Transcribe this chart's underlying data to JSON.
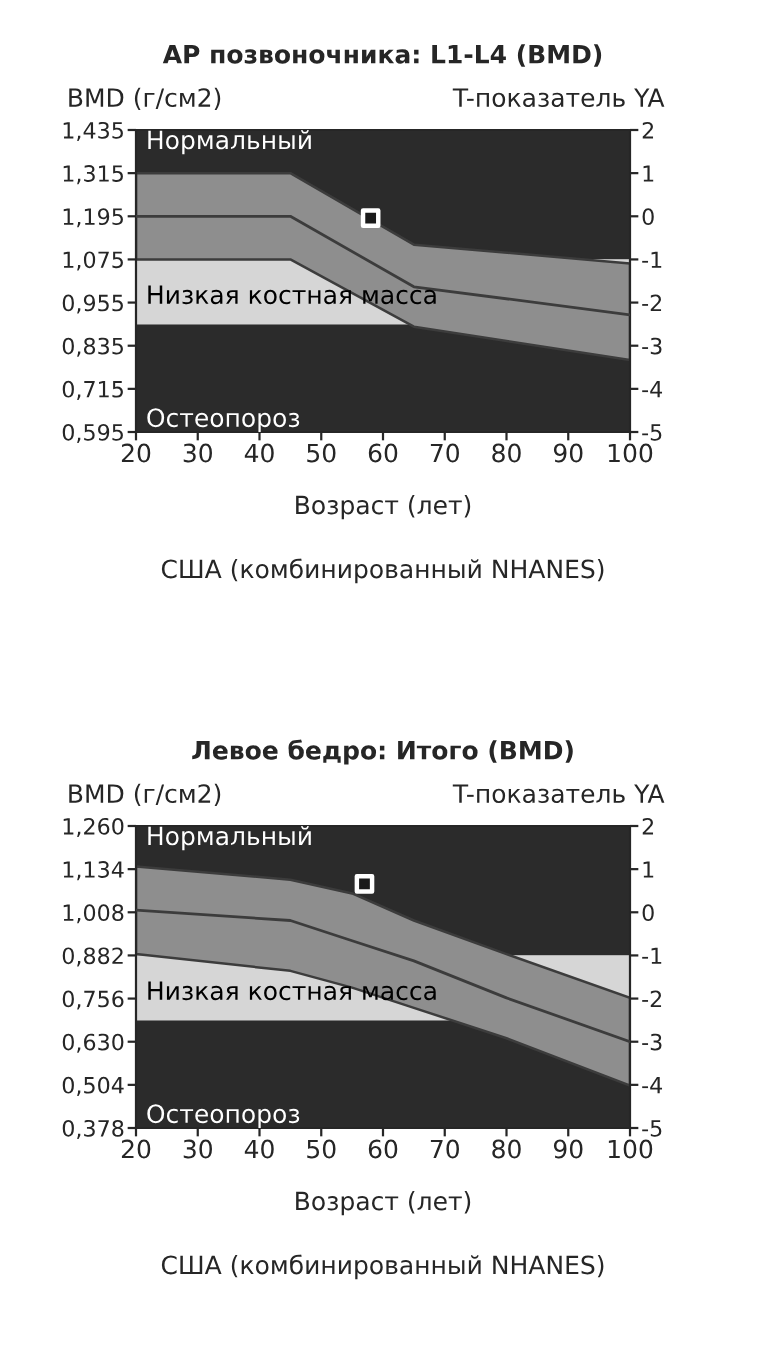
{
  "chart_data": [
    {
      "type": "line",
      "title": "AP позвоночника: L1-L4 (BMD)",
      "ylabel": "BMD (г/см2)",
      "y2label": "T-показатель YA",
      "xlabel": "Возраст (лет)",
      "annotations": [
        "США (комбинированный NHANES)"
      ],
      "xlim": [
        20,
        100
      ],
      "xticks": [
        20,
        30,
        40,
        50,
        60,
        70,
        80,
        90,
        100
      ],
      "ylim": [
        0.595,
        1.435
      ],
      "yticks": [
        {
          "value": 0.595,
          "label": "0,595"
        },
        {
          "value": 0.715,
          "label": "0,715"
        },
        {
          "value": 0.835,
          "label": "0,835"
        },
        {
          "value": 0.955,
          "label": "0,955"
        },
        {
          "value": 1.075,
          "label": "1,075"
        },
        {
          "value": 1.195,
          "label": "1,195"
        },
        {
          "value": 1.315,
          "label": "1,315"
        },
        {
          "value": 1.435,
          "label": "1,435"
        }
      ],
      "y2lim": [
        -5,
        2
      ],
      "y2ticks": [
        -5,
        -4,
        -3,
        -2,
        -1,
        0,
        1,
        2
      ],
      "bands": [
        {
          "axis": "y2",
          "from": -1,
          "to": 2,
          "label": "Нормальный",
          "color": "#2b2b2b"
        },
        {
          "axis": "y2",
          "from": -5,
          "to": -2.5,
          "label": "Остеопороз",
          "color": "#2b2b2b"
        },
        {
          "axis": "y2",
          "from": -2.5,
          "to": -1,
          "label": "Низкая костная масса",
          "color": "#d6d6d6"
        }
      ],
      "series": [
        {
          "type": "line",
          "color": "#3c3c3c",
          "marker": "none",
          "x": [
            20,
            45,
            65,
            100
          ],
          "values": [
            1.195,
            1.195,
            0.999,
            0.921
          ],
          "lower": [
            1.075,
            1.075,
            0.888,
            0.795
          ],
          "upper": [
            1.315,
            1.315,
            1.116,
            1.064
          ]
        },
        {
          "type": "scatter",
          "color": "#ffffff",
          "marker": "square",
          "x": [
            58
          ],
          "values": [
            1.19
          ]
        }
      ],
      "grid": false,
      "legend": false
    },
    {
      "type": "line",
      "title": "Левое бедро: Итого (BMD)",
      "ylabel": "BMD (г/см2)",
      "y2label": "T-показатель YA",
      "xlabel": "Возраст (лет)",
      "annotations": [
        "США (комбинированный NHANES)"
      ],
      "xlim": [
        20,
        100
      ],
      "xticks": [
        20,
        30,
        40,
        50,
        60,
        70,
        80,
        90,
        100
      ],
      "ylim": [
        0.378,
        1.26
      ],
      "yticks": [
        {
          "value": 0.378,
          "label": "0,378"
        },
        {
          "value": 0.504,
          "label": "0,504"
        },
        {
          "value": 0.63,
          "label": "0,630"
        },
        {
          "value": 0.756,
          "label": "0,756"
        },
        {
          "value": 0.882,
          "label": "0,882"
        },
        {
          "value": 1.008,
          "label": "1,008"
        },
        {
          "value": 1.134,
          "label": "1,134"
        },
        {
          "value": 1.26,
          "label": "1,260"
        }
      ],
      "y2lim": [
        -5,
        2
      ],
      "y2ticks": [
        -5,
        -4,
        -3,
        -2,
        -1,
        0,
        1,
        2
      ],
      "bands": [
        {
          "axis": "y2",
          "from": -1,
          "to": 2,
          "label": "Нормальный",
          "color": "#2b2b2b"
        },
        {
          "axis": "y2",
          "from": -5,
          "to": -2.5,
          "label": "Остеопороз",
          "color": "#2b2b2b"
        },
        {
          "axis": "y2",
          "from": -2.5,
          "to": -1,
          "label": "Низкая костная масса",
          "color": "#d6d6d6"
        }
      ],
      "series": [
        {
          "type": "line",
          "color": "#3c3c3c",
          "marker": "none",
          "x": [
            20,
            45,
            55,
            65,
            80,
            100
          ],
          "values": [
            1.014,
            0.984,
            0.925,
            0.866,
            0.758,
            0.63
          ],
          "lower": [
            0.886,
            0.837,
            0.788,
            0.729,
            0.64,
            0.502
          ],
          "upper": [
            1.142,
            1.103,
            1.063,
            0.984,
            0.886,
            0.758
          ]
        },
        {
          "type": "scatter",
          "color": "#ffffff",
          "marker": "square",
          "x": [
            57
          ],
          "values": [
            1.091
          ]
        }
      ],
      "grid": false,
      "legend": false
    }
  ]
}
